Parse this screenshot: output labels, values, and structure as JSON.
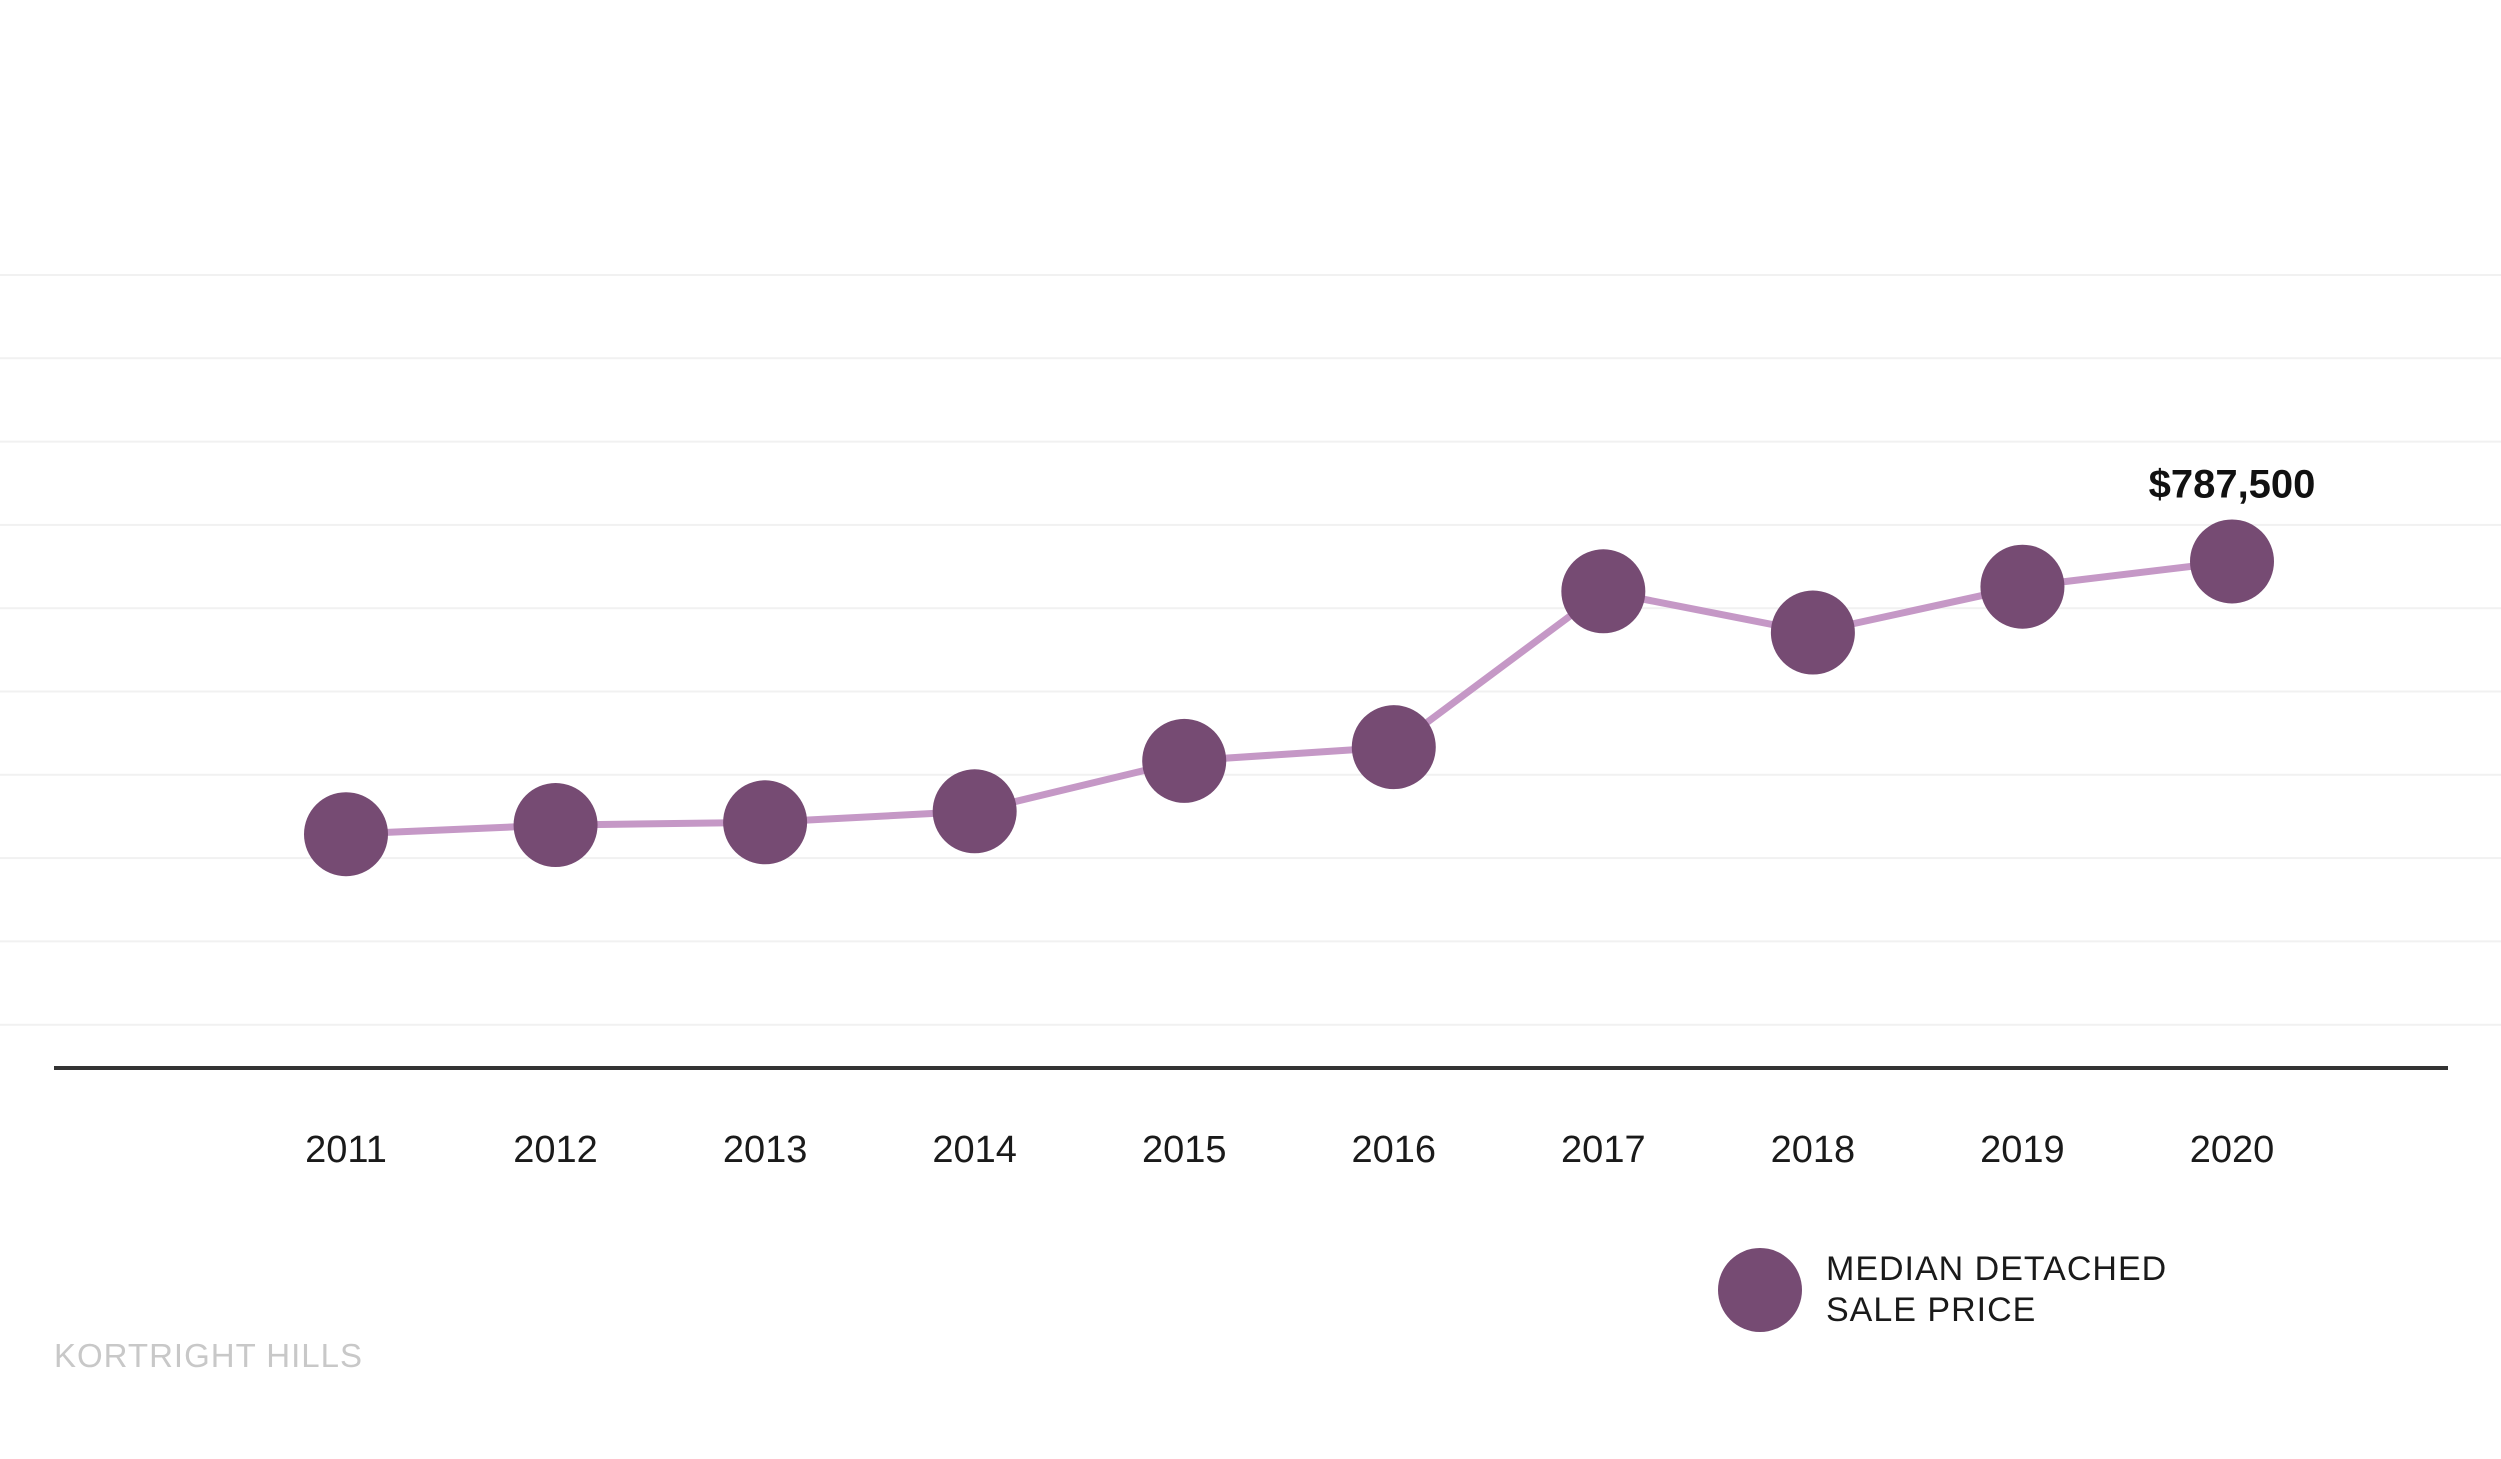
{
  "chart_data": {
    "type": "line",
    "x": [
      "2011",
      "2012",
      "2013",
      "2014",
      "2015",
      "2016",
      "2017",
      "2018",
      "2019",
      "2020"
    ],
    "series": [
      {
        "name": "MEDIAN DETACHED SALE PRICE",
        "values": [
          490000,
          500000,
          503000,
          515000,
          570000,
          585000,
          755000,
          710000,
          760000,
          787500
        ]
      }
    ],
    "ylim": [
      235000,
      1100000
    ],
    "annotations": [
      {
        "x": "2020",
        "text": "$787,500"
      }
    ],
    "grid": true,
    "legend_placement": "bottom-right",
    "colors": {
      "line": "#c598c6",
      "marker": "#764b73",
      "grid": "#f1f1f1",
      "axis": "#333333"
    }
  },
  "legend": {
    "line1": "MEDIAN DETACHED",
    "line2": "SALE PRICE"
  },
  "watermark": "KORTRIGHT HILLS"
}
